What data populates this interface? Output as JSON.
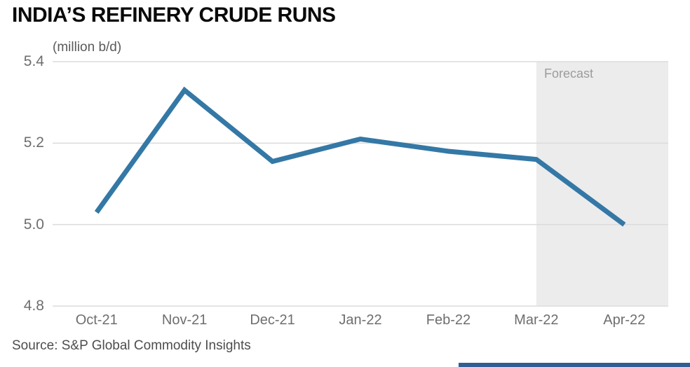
{
  "title": "INDIA’S REFINERY CRUDE RUNS",
  "source": "Source: S&P Global Commodity Insights",
  "colors": {
    "line": "#3478A6",
    "grid": "#DBDBDB",
    "forecast_band": "#ECECEC",
    "forecast_text": "#9C9C9C",
    "tick_text": "#6E6E6E",
    "footer_bar": "#2E5E94"
  },
  "chart_data": {
    "type": "line",
    "title": "INDIA’S REFINERY CRUDE RUNS",
    "ylabel": "(million b/d)",
    "categories": [
      "Oct-21",
      "Nov-21",
      "Dec-21",
      "Jan-22",
      "Feb-22",
      "Mar-22",
      "Apr-22"
    ],
    "values": [
      5.03,
      5.33,
      5.155,
      5.21,
      5.18,
      5.16,
      5.0
    ],
    "ylim": [
      4.8,
      5.4
    ],
    "y_ticks": [
      5.4,
      5.2,
      5.0,
      4.8
    ],
    "grid": "horizontal",
    "legend": "none",
    "forecast_start_category": "Mar-22",
    "forecast_region_label": "Forecast"
  }
}
